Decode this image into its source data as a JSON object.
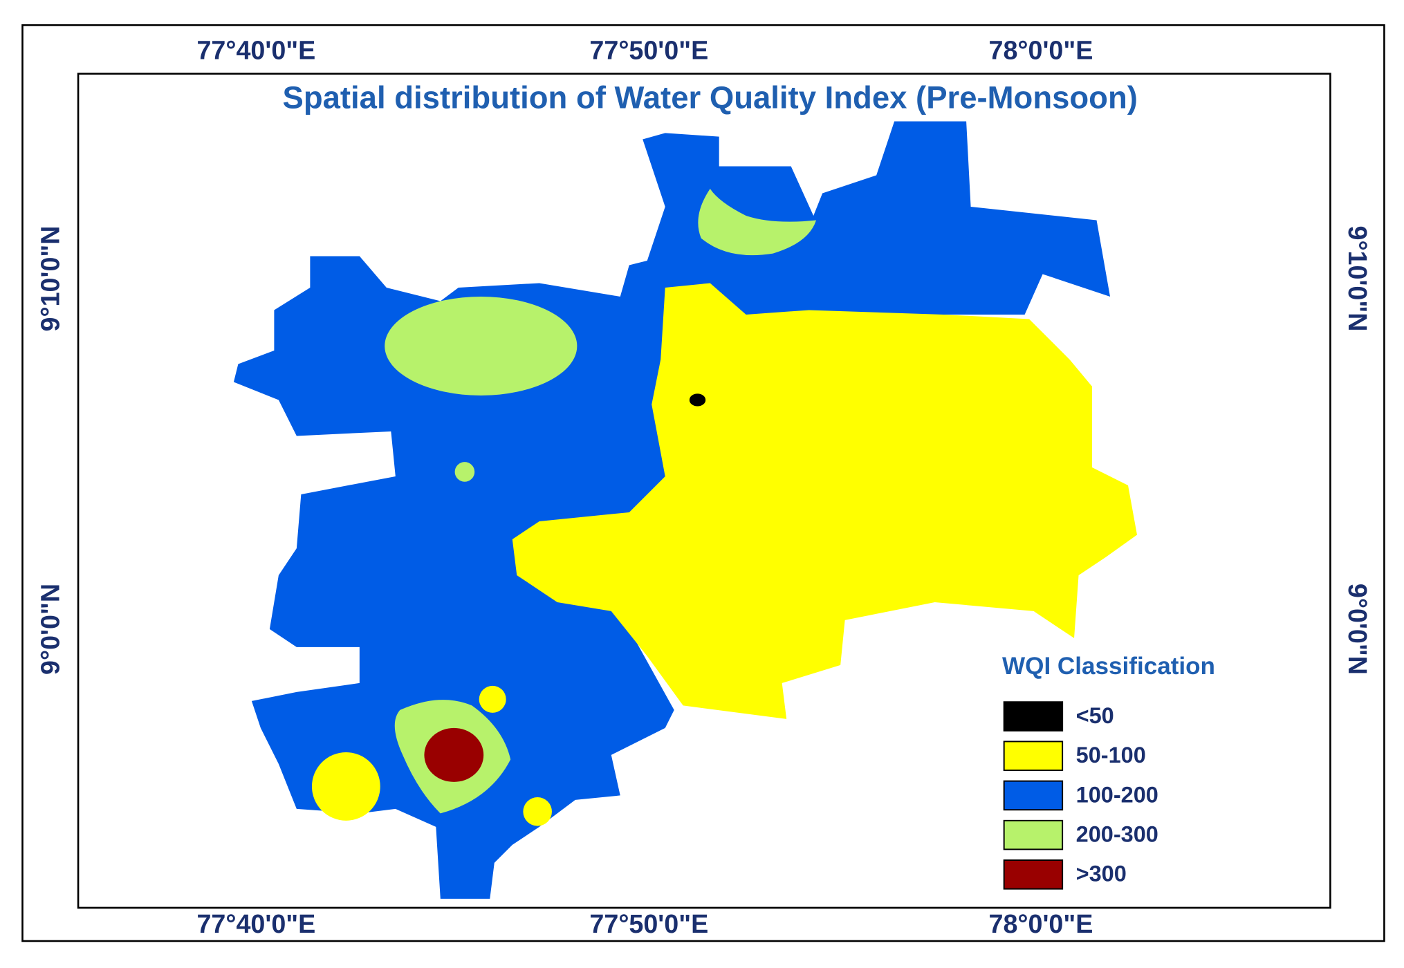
{
  "title": "Spatial distribution of Water Quality Index  (Pre-Monsoon)",
  "longitude_labels": [
    "77°40'0\"E",
    "77°50'0\"E",
    "78°0'0\"E"
  ],
  "latitude_labels": [
    "9°10'0\"N",
    "9°0'0\"N"
  ],
  "legend": {
    "title": "WQI Classification",
    "items": [
      {
        "label": "<50",
        "color": "#000000"
      },
      {
        "label": "50-100",
        "color": "#ffff00"
      },
      {
        "label": "100-200",
        "color": "#005ce6"
      },
      {
        "label": "200-300",
        "color": "#b7f26b"
      },
      {
        "label": ">300",
        "color": "#990000"
      }
    ]
  }
}
